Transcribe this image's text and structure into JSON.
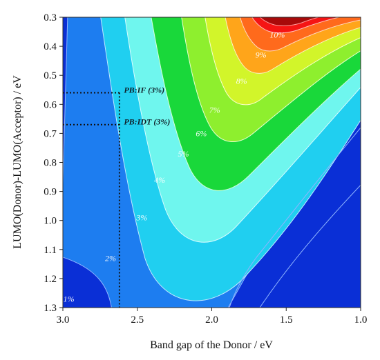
{
  "chart_data": {
    "type": "heatmap",
    "subtype": "filled-contour",
    "title": "",
    "xlabel": "Band gap of the Donor / eV",
    "ylabel": "LUMO(Donor)-LUMO(Acceptor) / eV",
    "xlim": [
      3.0,
      1.0
    ],
    "ylim": [
      1.3,
      0.3
    ],
    "x_reversed": true,
    "y_reversed": true,
    "x_ticks": [
      "3.0",
      "2.5",
      "2.0",
      "1.5",
      "1.0"
    ],
    "y_ticks": [
      "0.3",
      "0.4",
      "0.5",
      "0.6",
      "0.7",
      "0.8",
      "0.9",
      "1.0",
      "1.1",
      "1.2",
      "1.3"
    ],
    "grid": false,
    "legend": "none",
    "colors": [
      "#0a2fd6",
      "#1d7df0",
      "#20cff0",
      "#6ff6ee",
      "#19d83a",
      "#8eef2e",
      "#d2f52a",
      "#ffa51a",
      "#ff6a1c",
      "#f51414",
      "#a80a0a"
    ],
    "contour_levels": [
      {
        "label": "1%",
        "at": [
          2.96,
          1.27
        ]
      },
      {
        "label": "2%",
        "at": [
          2.68,
          1.13
        ]
      },
      {
        "label": "3%",
        "at": [
          2.47,
          0.99
        ]
      },
      {
        "label": "4%",
        "at": [
          2.35,
          0.86
        ]
      },
      {
        "label": "5%",
        "at": [
          2.19,
          0.77
        ]
      },
      {
        "label": "6%",
        "at": [
          2.07,
          0.7
        ]
      },
      {
        "label": "7%",
        "at": [
          1.98,
          0.62
        ]
      },
      {
        "label": "8%",
        "at": [
          1.8,
          0.52
        ]
      },
      {
        "label": "9%",
        "at": [
          1.67,
          0.43
        ]
      },
      {
        "label": "10%",
        "at": [
          1.56,
          0.36
        ]
      }
    ],
    "annotations": [
      {
        "label": "PB:IF (3%)",
        "x": 2.62,
        "y": 0.56,
        "text_at": [
          2.59,
          0.55
        ]
      },
      {
        "label": "PB:IDT (3%)",
        "x": 2.62,
        "y": 0.67,
        "text_at": [
          2.59,
          0.66
        ]
      }
    ]
  }
}
